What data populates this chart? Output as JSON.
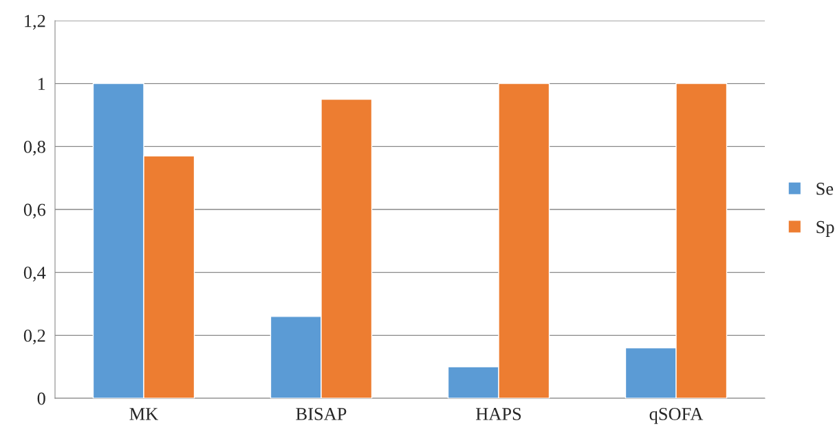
{
  "chart_data": {
    "type": "bar",
    "categories": [
      "MK",
      "BISAP",
      "HAPS",
      "qSOFA"
    ],
    "series": [
      {
        "name": "Se",
        "color": "#5b9bd5",
        "values": [
          1,
          0.26,
          0.1,
          0.16
        ]
      },
      {
        "name": "Sp",
        "color": "#ed7d31",
        "values": [
          0.77,
          0.95,
          1,
          1
        ]
      }
    ],
    "ylim": [
      0,
      1.2
    ],
    "yticks": [
      0,
      {
        "value": 0.2,
        "label": "0,2"
      },
      {
        "value": 0.4,
        "label": "0,4"
      },
      {
        "value": 0.6,
        "label": "0,6"
      },
      {
        "value": 0.8,
        "label": "0,8"
      },
      1,
      {
        "value": 1.2,
        "label": "1,2"
      }
    ],
    "grid": "y",
    "legend": "right"
  }
}
